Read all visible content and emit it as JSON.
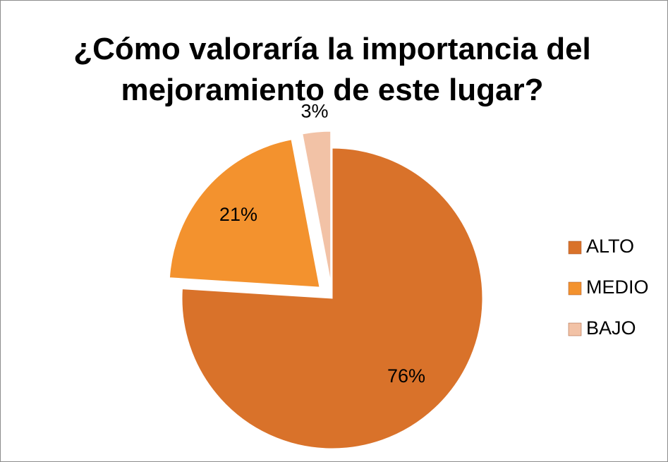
{
  "chart_data": {
    "type": "pie",
    "title": "¿Cómo valoraría la importancia del mejoramiento de este lugar?",
    "categories": [
      "ALTO",
      "MEDIO",
      "BAJO"
    ],
    "values": [
      76,
      21,
      3
    ],
    "value_labels": [
      "76%",
      "21%",
      "3%"
    ],
    "colors": [
      "#d9722a",
      "#f3922e",
      "#f2c2a6"
    ],
    "exploded": [
      false,
      true,
      true
    ],
    "legend": "right"
  }
}
